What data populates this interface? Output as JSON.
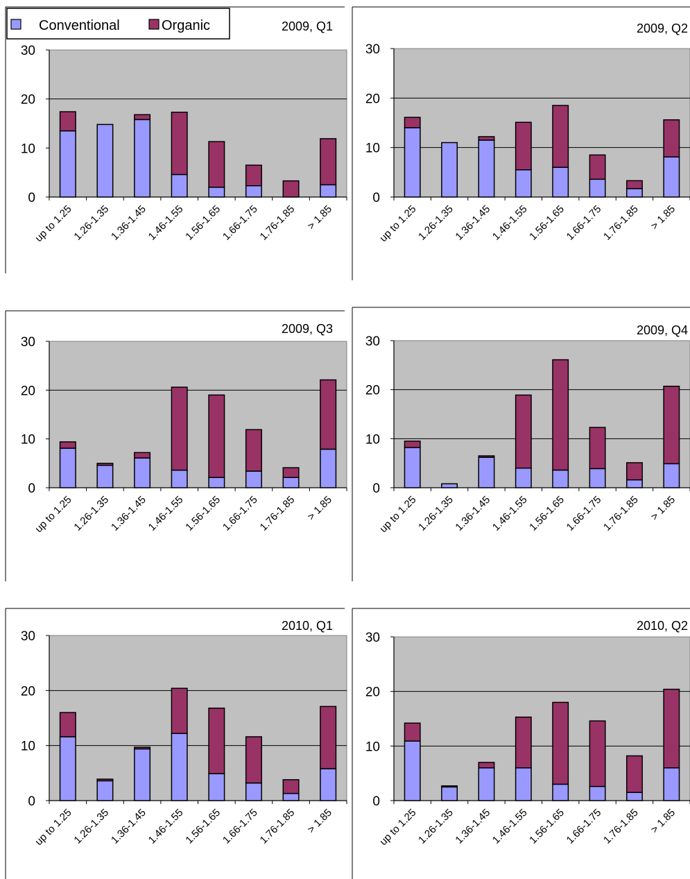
{
  "colors": {
    "conventional": "#9999ff",
    "organic": "#993366",
    "plot_bg": "#c0c0c0",
    "gridline": "#000000"
  },
  "legend": {
    "items": [
      {
        "label": "Conventional",
        "color": "#9999ff"
      },
      {
        "label": "Organic",
        "color": "#993366"
      }
    ]
  },
  "chart_data": [
    {
      "type": "bar",
      "stacked": true,
      "title": "2009, Q1",
      "categories": [
        "up to 1.25",
        "1.26-1.35",
        "1.36-1.45",
        "1.46-1.55",
        "1.56-1.65",
        "1.66-1.75",
        "1.76-1.85",
        "> 1.85"
      ],
      "series": [
        {
          "name": "Conventional",
          "values": [
            13.5,
            14.8,
            15.8,
            4.6,
            2.0,
            2.3,
            0,
            2.5
          ]
        },
        {
          "name": "Organic",
          "values": [
            3.9,
            0,
            1.0,
            12.7,
            9.3,
            4.2,
            3.3,
            9.4
          ]
        }
      ],
      "ylim": [
        0,
        30
      ],
      "yticks": [
        0,
        10,
        20,
        30
      ],
      "gridlines": [
        20
      ]
    },
    {
      "type": "bar",
      "stacked": true,
      "title": "2009, Q2",
      "categories": [
        "up to 1.25",
        "1.26-1.35",
        "1.36-1.45",
        "1.46-1.55",
        "1.56-1.65",
        "1.66-1.75",
        "1.76-1.85",
        "> 1.85"
      ],
      "series": [
        {
          "name": "Conventional",
          "values": [
            14.0,
            11.0,
            11.5,
            5.5,
            6.0,
            3.6,
            1.7,
            8.1
          ]
        },
        {
          "name": "Organic",
          "values": [
            2.1,
            0,
            0.7,
            9.6,
            12.5,
            4.9,
            1.6,
            7.5
          ]
        }
      ],
      "ylim": [
        0,
        30
      ],
      "yticks": [
        0,
        10,
        20,
        30
      ],
      "gridlines": [
        10,
        20
      ]
    },
    {
      "type": "bar",
      "stacked": true,
      "title": "2009, Q3",
      "categories": [
        "up to 1.25",
        "1.26-1.35",
        "1.36-1.45",
        "1.46-1.55",
        "1.56-1.65",
        "1.66-1.75",
        "1.76-1.85",
        "> 1.85"
      ],
      "series": [
        {
          "name": "Conventional",
          "values": [
            8.1,
            4.6,
            6.1,
            3.6,
            2.1,
            3.4,
            2.1,
            7.9
          ]
        },
        {
          "name": "Organic",
          "values": [
            1.3,
            0.4,
            1.1,
            17.0,
            16.9,
            8.5,
            2.0,
            14.2
          ]
        }
      ],
      "ylim": [
        0,
        30
      ],
      "yticks": [
        0,
        10,
        20,
        30
      ],
      "gridlines": [
        20
      ]
    },
    {
      "type": "bar",
      "stacked": true,
      "title": "2009, Q4",
      "categories": [
        "up to 1.25",
        "1.26-1.35",
        "1.36-1.45",
        "1.46-1.55",
        "1.56-1.65",
        "1.66-1.75",
        "1.76-1.85",
        "> 1.85"
      ],
      "series": [
        {
          "name": "Conventional",
          "values": [
            8.2,
            0.8,
            6.2,
            4.0,
            3.6,
            3.9,
            1.6,
            4.9
          ]
        },
        {
          "name": "Organic",
          "values": [
            1.3,
            0,
            0.3,
            14.9,
            22.5,
            8.4,
            3.5,
            15.8
          ]
        }
      ],
      "ylim": [
        0,
        30
      ],
      "yticks": [
        0,
        10,
        20,
        30
      ],
      "gridlines": [
        10,
        20
      ]
    },
    {
      "type": "bar",
      "stacked": true,
      "title": "2010, Q1",
      "categories": [
        "up to 1.25",
        "1.26-1.35",
        "1.36-1.45",
        "1.46-1.55",
        "1.56-1.65",
        "1.66-1.75",
        "1.76-1.85",
        "> 1.85"
      ],
      "series": [
        {
          "name": "Conventional",
          "values": [
            11.6,
            3.6,
            9.4,
            12.2,
            4.9,
            3.2,
            1.3,
            5.8
          ]
        },
        {
          "name": "Organic",
          "values": [
            4.4,
            0.3,
            0.3,
            8.2,
            11.9,
            8.4,
            2.5,
            11.3
          ]
        }
      ],
      "ylim": [
        0,
        30
      ],
      "yticks": [
        0,
        10,
        20,
        30
      ],
      "gridlines": [
        10,
        20
      ]
    },
    {
      "type": "bar",
      "stacked": true,
      "title": "2010, Q2",
      "categories": [
        "up to 1.25",
        "1.26-1.35",
        "1.36-1.45",
        "1.46-1.55",
        "1.56-1.65",
        "1.66-1.75",
        "1.76-1.85",
        "> 1.85"
      ],
      "series": [
        {
          "name": "Conventional",
          "values": [
            10.9,
            2.5,
            6.0,
            6.0,
            3.0,
            2.6,
            1.5,
            6.0
          ]
        },
        {
          "name": "Organic",
          "values": [
            3.3,
            0.2,
            1.0,
            9.3,
            15.0,
            12.0,
            6.7,
            14.4
          ]
        }
      ],
      "ylim": [
        0,
        30
      ],
      "yticks": [
        0,
        10,
        20,
        30
      ],
      "gridlines": [
        10,
        20
      ]
    }
  ]
}
